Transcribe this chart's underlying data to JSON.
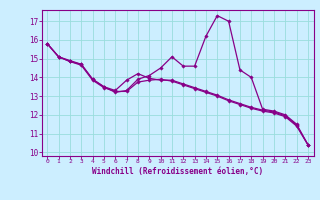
{
  "xlabel": "Windchill (Refroidissement éolien,°C)",
  "bg_color": "#cceeff",
  "grid_color": "#99dddd",
  "line_color": "#880088",
  "xlim": [
    -0.5,
    23.5
  ],
  "ylim": [
    9.8,
    17.6
  ],
  "yticks": [
    10,
    11,
    12,
    13,
    14,
    15,
    16,
    17
  ],
  "xticks": [
    0,
    1,
    2,
    3,
    4,
    5,
    6,
    7,
    8,
    9,
    10,
    11,
    12,
    13,
    14,
    15,
    16,
    17,
    18,
    19,
    20,
    21,
    22,
    23
  ],
  "series1_x": [
    0,
    1,
    2,
    3,
    4,
    5,
    6,
    7,
    8,
    9,
    10,
    11,
    12,
    13,
    14,
    15,
    16,
    17,
    18,
    19,
    20,
    21,
    22,
    23
  ],
  "series1_y": [
    15.8,
    15.1,
    14.9,
    14.7,
    13.9,
    13.5,
    13.2,
    13.3,
    13.9,
    14.1,
    14.5,
    15.1,
    14.6,
    14.6,
    16.2,
    17.3,
    17.0,
    14.4,
    14.0,
    12.3,
    12.2,
    12.0,
    11.5,
    10.4
  ],
  "series2_x": [
    0,
    1,
    2,
    3,
    4,
    5,
    6,
    7,
    8,
    9,
    10,
    11,
    12,
    13,
    14,
    15,
    16,
    17,
    18,
    19,
    20,
    21,
    22,
    23
  ],
  "series2_y": [
    15.8,
    15.1,
    14.85,
    14.7,
    13.9,
    13.5,
    13.3,
    13.85,
    14.2,
    13.95,
    13.85,
    13.85,
    13.65,
    13.45,
    13.25,
    13.05,
    12.8,
    12.6,
    12.4,
    12.25,
    12.15,
    11.95,
    11.45,
    10.4
  ],
  "series3_x": [
    0,
    1,
    2,
    3,
    4,
    5,
    6,
    7,
    8,
    9,
    10,
    11,
    12,
    13,
    14,
    15,
    16,
    17,
    18,
    19,
    20,
    21,
    22,
    23
  ],
  "series3_y": [
    15.8,
    15.1,
    14.85,
    14.65,
    13.85,
    13.45,
    13.25,
    13.25,
    13.75,
    13.85,
    13.9,
    13.8,
    13.6,
    13.4,
    13.2,
    13.0,
    12.75,
    12.55,
    12.35,
    12.2,
    12.1,
    11.9,
    11.4,
    10.4
  ]
}
